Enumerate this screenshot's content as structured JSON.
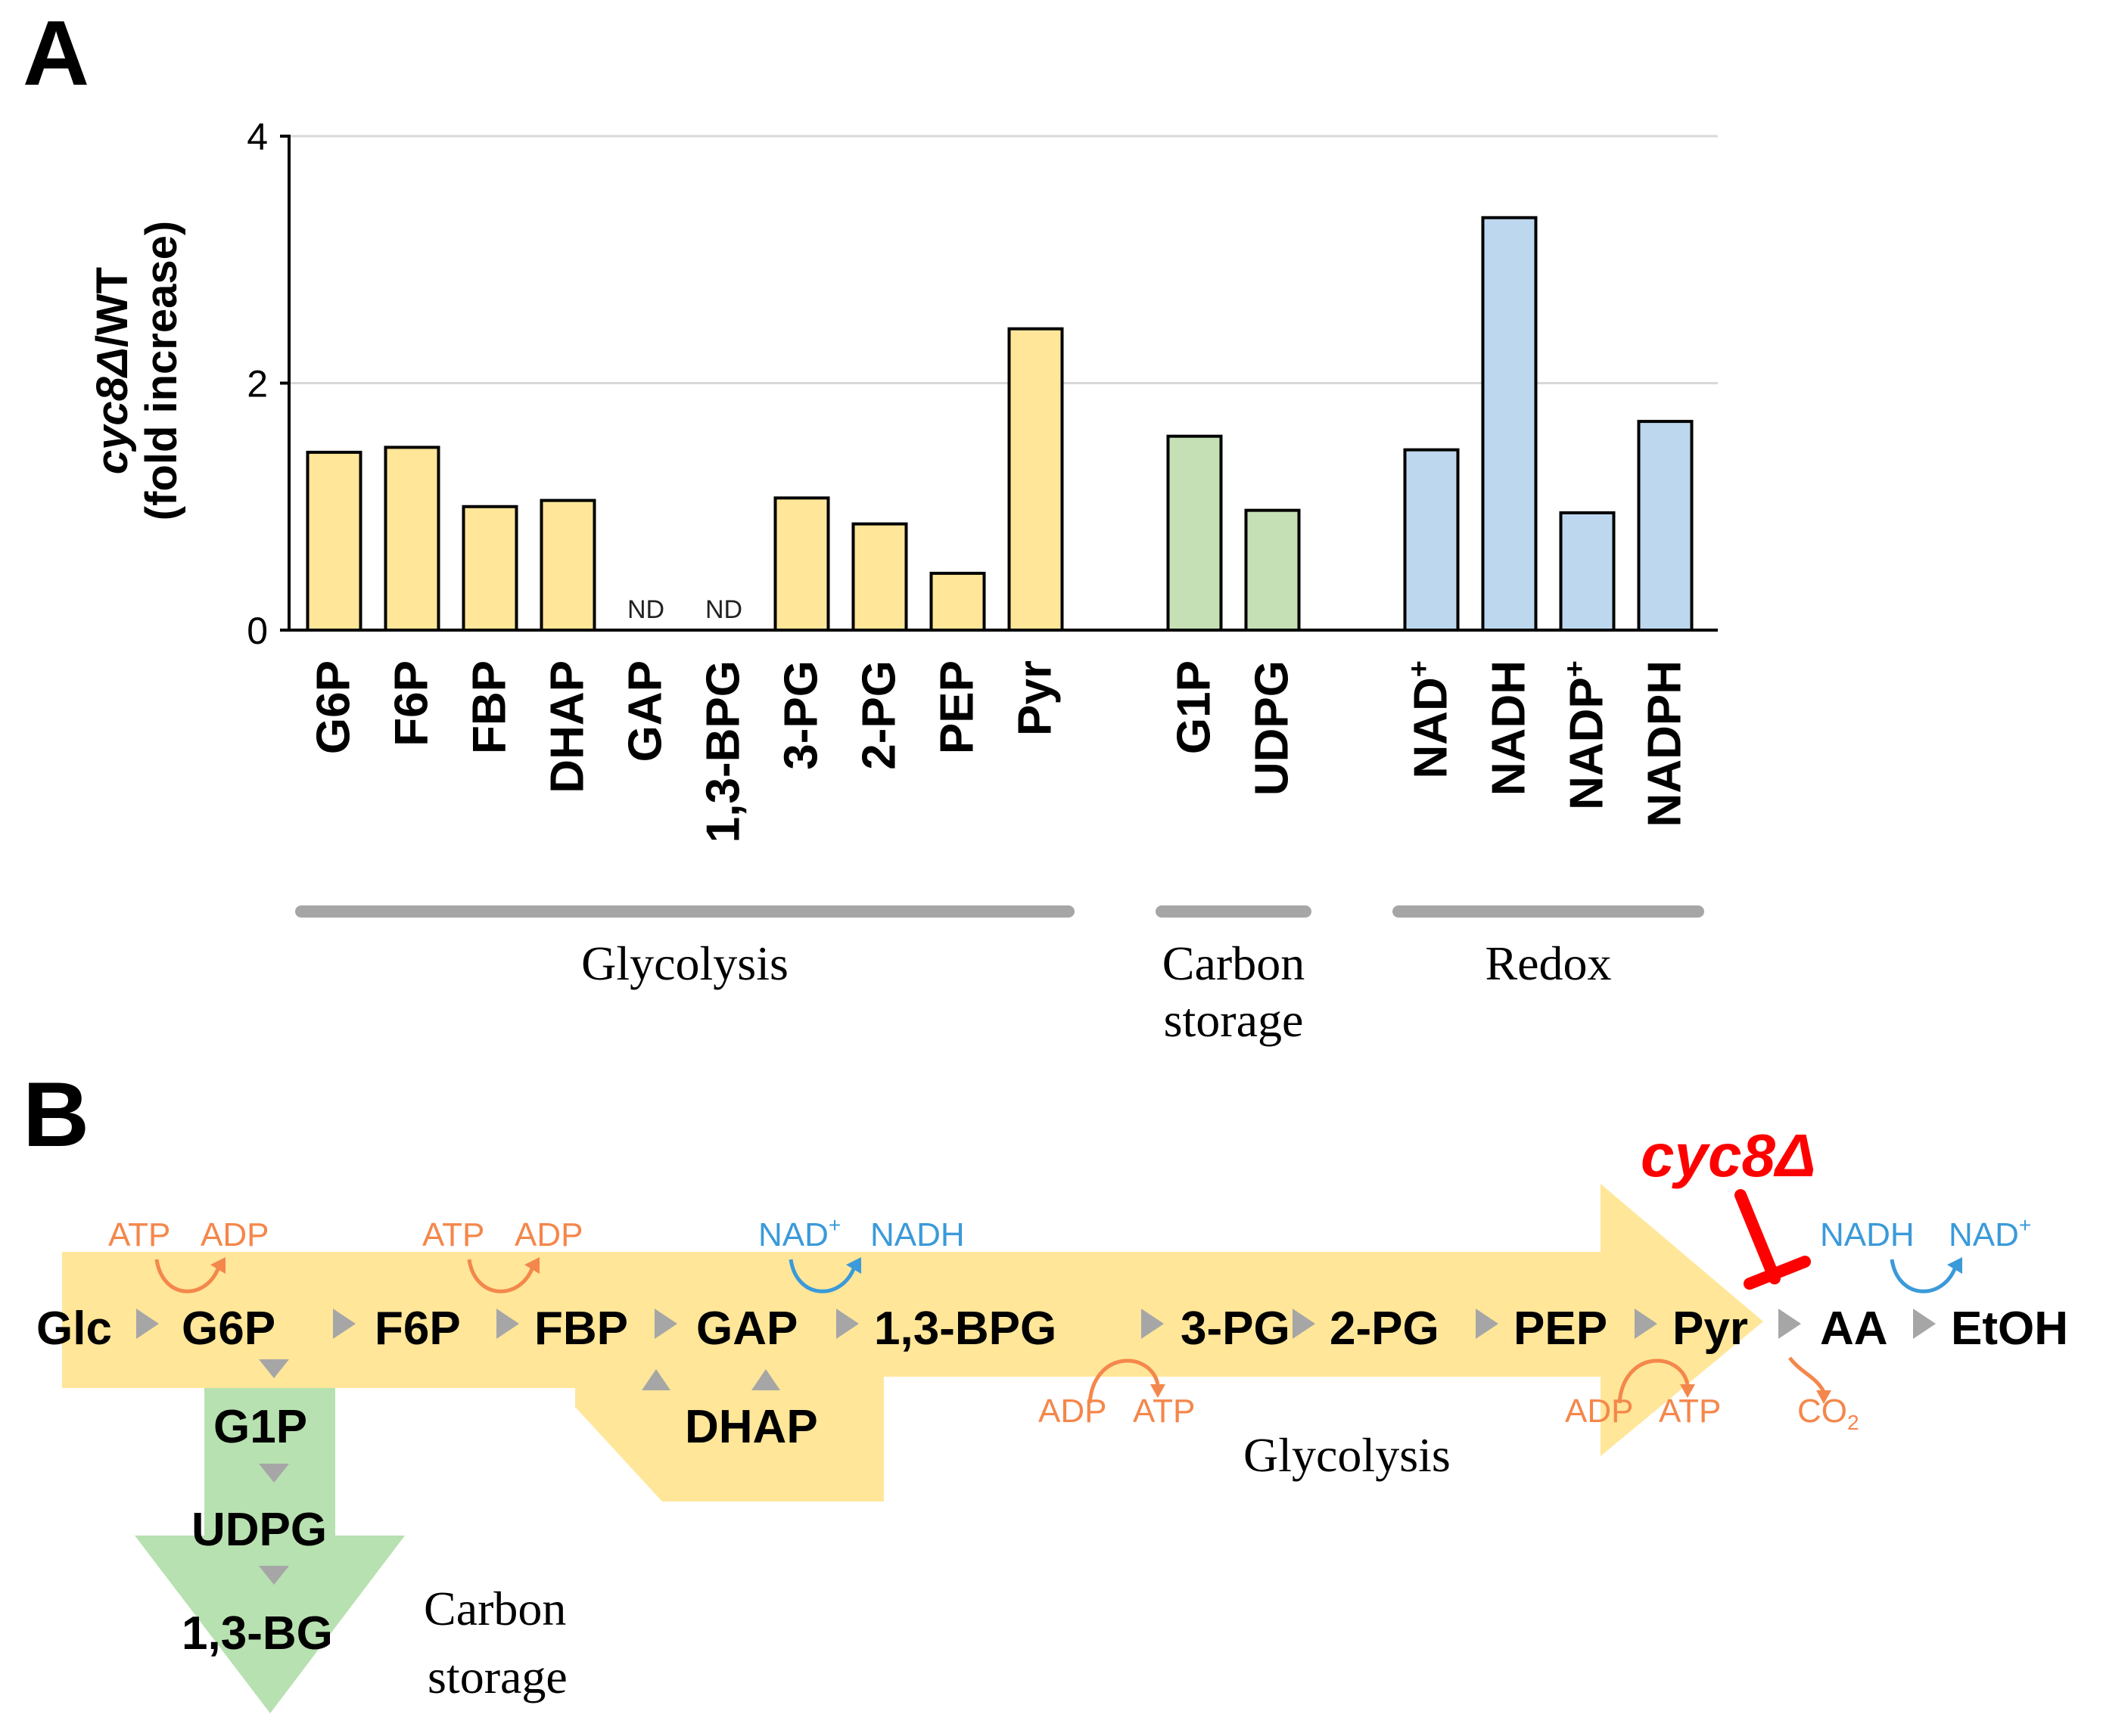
{
  "panels": {
    "a_label": "A",
    "b_label": "B"
  },
  "colors": {
    "glycolysis": "#FFE699",
    "carbon": "#C5E0B4",
    "redox": "#BDD7EE",
    "bar_stroke": "#000000",
    "group_line": "#A6A6A6",
    "orange": "#F4874B",
    "blue": "#3B9AD9",
    "red": "#FF0000",
    "arrow_grey": "#A6A6A6",
    "pathway_yellow": "#FFE699",
    "pathway_green": "#B7E1B0"
  },
  "chart_data": {
    "type": "bar",
    "ylabel_line1_italic": "cyc8Δ",
    "ylabel_line1_rest": "/WT",
    "ylabel_line2": "(fold increase)",
    "ylim": [
      0,
      4
    ],
    "yticks": [
      "0",
      "2",
      "4"
    ],
    "grid": true,
    "groups": [
      {
        "name": "Glycolysis",
        "color_key": "glycolysis",
        "bars": [
          {
            "label": "G6P",
            "value": 1.44,
            "nd": false
          },
          {
            "label": "F6P",
            "value": 1.48,
            "nd": false
          },
          {
            "label": "FBP",
            "value": 1.0,
            "nd": false
          },
          {
            "label": "DHAP",
            "value": 1.05,
            "nd": false
          },
          {
            "label": "GAP",
            "value": 0,
            "nd": true
          },
          {
            "label": "1,3-BPG",
            "value": 0,
            "nd": true
          },
          {
            "label": "3-PG",
            "value": 1.07,
            "nd": false
          },
          {
            "label": "2-PG",
            "value": 0.86,
            "nd": false
          },
          {
            "label": "PEP",
            "value": 0.46,
            "nd": false
          },
          {
            "label": "Pyr",
            "value": 2.44,
            "nd": false
          }
        ]
      },
      {
        "name": "Carbon storage",
        "name_lines": [
          "Carbon",
          "storage"
        ],
        "color_key": "carbon",
        "bars": [
          {
            "label": "G1P",
            "value": 1.57,
            "nd": false
          },
          {
            "label": "UDPG",
            "value": 0.97,
            "nd": false
          }
        ]
      },
      {
        "name": "Redox",
        "color_key": "redox",
        "bars": [
          {
            "label": "NAD",
            "sup": "+",
            "value": 1.46,
            "nd": false
          },
          {
            "label": "NADH",
            "sup": "",
            "value": 3.34,
            "nd": false
          },
          {
            "label": "NADP",
            "sup": "+",
            "value": 0.95,
            "nd": false
          },
          {
            "label": "NADPH",
            "sup": "",
            "value": 1.69,
            "nd": false
          }
        ]
      }
    ],
    "nd_label": "ND"
  },
  "pathway": {
    "main_chain": [
      "Glc",
      "G6P",
      "F6P",
      "FBP",
      "GAP",
      "1,3-BPG",
      "3-PG",
      "2-PG",
      "PEP",
      "Pyr",
      "AA",
      "EtOH"
    ],
    "dhap": "DHAP",
    "storage_chain": [
      "G1P",
      "UDPG",
      "1,3-BG"
    ],
    "glycolysis_label": "Glycolysis",
    "carbon_label_lines": [
      "Carbon",
      "storage"
    ],
    "mutant_label": "cyc8Δ",
    "cofactors": {
      "atp": "ATP",
      "adp": "ADP",
      "nad_plus": "NAD",
      "nadh": "NADH",
      "co2": "CO",
      "co2_sub": "2",
      "plus": "+"
    }
  }
}
